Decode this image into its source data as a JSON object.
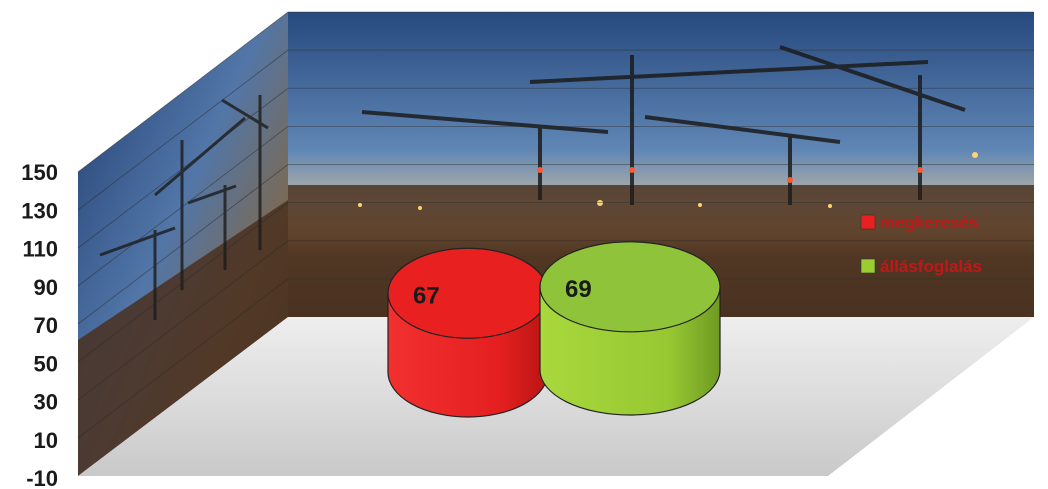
{
  "chart_data": {
    "type": "bar",
    "subtype": "3d-cylinder",
    "title": "",
    "xlabel": "",
    "ylabel": "",
    "ylim": [
      -10,
      150
    ],
    "yticks": [
      -10,
      10,
      30,
      50,
      70,
      90,
      110,
      130,
      150
    ],
    "grid": true,
    "legend_position": "right",
    "series": [
      {
        "name": "megkeresés",
        "value": 67,
        "color": "#e82020"
      },
      {
        "name": "állásfoglalás",
        "value": 69,
        "color": "#9acd32"
      }
    ]
  }
}
